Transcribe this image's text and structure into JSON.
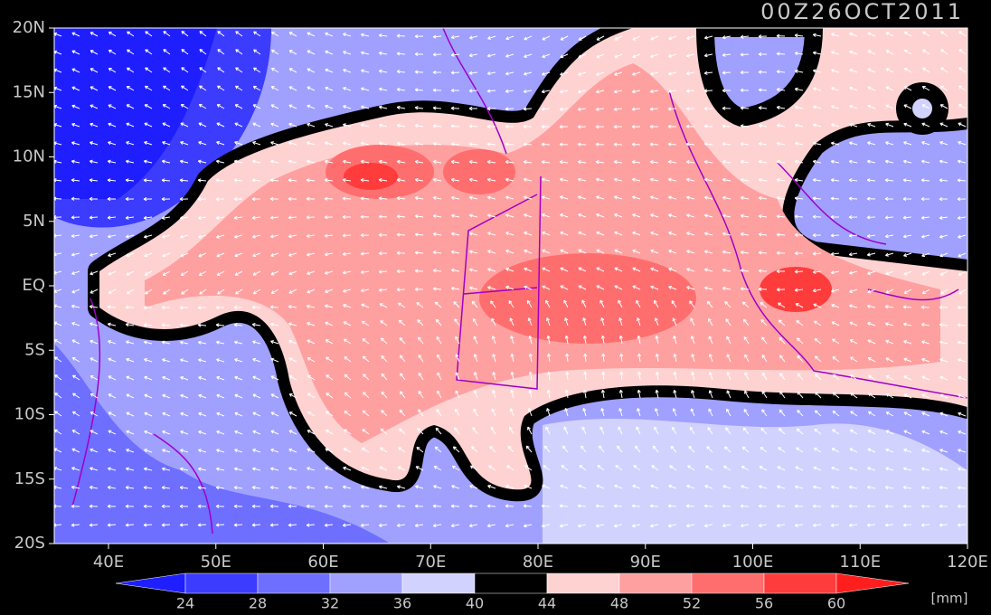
{
  "title": "00Z26OCT2011",
  "lon_labels": [
    "40E",
    "50E",
    "60E",
    "70E",
    "80E",
    "90E",
    "100E",
    "110E",
    "120E"
  ],
  "lat_labels": [
    "20N",
    "15N",
    "10N",
    "5N",
    "EQ",
    "5S",
    "10S",
    "15S",
    "20S"
  ],
  "colorbar": {
    "levels": [
      24,
      28,
      32,
      36,
      40,
      44,
      48,
      52,
      56,
      60
    ],
    "colors": [
      "#1e1eff",
      "#3c3cff",
      "#6e6eff",
      "#a0a0ff",
      "#d2d2ff",
      "#000000",
      "#ffd2d2",
      "#ffa0a0",
      "#ff6e6e",
      "#ff3c3c",
      "#ff1e1e"
    ],
    "unit": "[mm]"
  }
}
